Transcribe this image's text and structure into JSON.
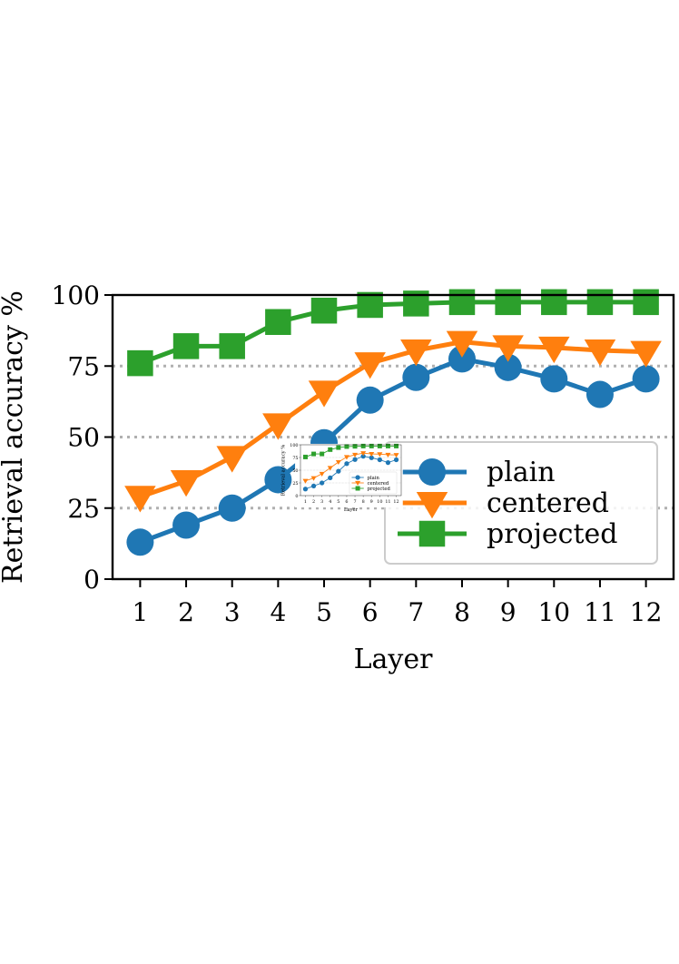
{
  "chart_data": {
    "type": "line",
    "title": "",
    "xlabel": "Layer",
    "ylabel": "Retrieval accuracy %",
    "x": [
      1,
      2,
      3,
      4,
      5,
      6,
      7,
      8,
      9,
      10,
      11,
      12
    ],
    "xlim": [
      0.4,
      12.6
    ],
    "ylim": [
      0,
      100
    ],
    "yticks": [
      0,
      25,
      50,
      75,
      100
    ],
    "grid": "horizontal dotted at 25, 50, 75",
    "legend_placement": "lower-right",
    "series": [
      {
        "name": "plain",
        "color": "#1f77b4",
        "marker": "circle",
        "values": [
          13,
          19,
          25,
          35,
          48,
          63,
          71,
          77.5,
          74.5,
          70.5,
          65,
          70.5
        ]
      },
      {
        "name": "centered",
        "color": "#ff7f0e",
        "marker": "triangle-down",
        "values": [
          29,
          34.5,
          43,
          54.5,
          66,
          76,
          80.5,
          83.5,
          82,
          81.5,
          80.5,
          80
        ]
      },
      {
        "name": "projected",
        "color": "#2ca02c",
        "marker": "square",
        "values": [
          76,
          82,
          82,
          90.5,
          94.5,
          96.5,
          97,
          97.5,
          97.5,
          97.5,
          97.5,
          97.5
        ]
      }
    ],
    "inset": {
      "description": "miniature copy of the same chart",
      "xlabel": "Layer",
      "ylabel": "Retrieval accuracy %"
    }
  }
}
